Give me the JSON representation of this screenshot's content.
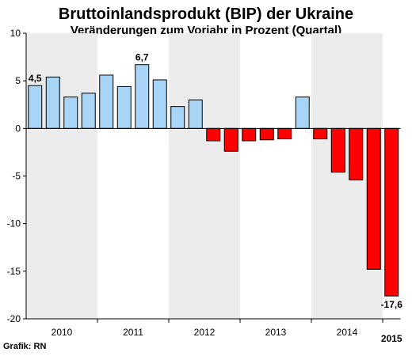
{
  "title": "Bruttoinlandsprodukt (BIP) der Ukraine",
  "subtitle": "Veränderungen zum Vorjahr in Prozent (Quartal)",
  "credit": "Grafik: RN",
  "colors": {
    "positive": "#a8d4f5",
    "negative": "#ff0000",
    "band": "#ececec",
    "outline": "#000000"
  },
  "chart_data": {
    "type": "bar",
    "categories": [
      "2010 Q1",
      "2010 Q2",
      "2010 Q3",
      "2010 Q4",
      "2011 Q1",
      "2011 Q2",
      "2011 Q3",
      "2011 Q4",
      "2012 Q1",
      "2012 Q2",
      "2012 Q3",
      "2012 Q4",
      "2013 Q1",
      "2013 Q2",
      "2013 Q3",
      "2013 Q4",
      "2014 Q1",
      "2014 Q2",
      "2014 Q3",
      "2014 Q4",
      "2015 Q1"
    ],
    "values": [
      4.5,
      5.4,
      3.3,
      3.7,
      5.6,
      4.4,
      6.7,
      5.1,
      2.3,
      3.0,
      -1.3,
      -2.4,
      -1.3,
      -1.2,
      -1.1,
      3.3,
      -1.1,
      -4.6,
      -5.4,
      -14.8,
      -17.6
    ],
    "ylim": [
      -20,
      10
    ],
    "yticks": [
      10,
      5,
      0,
      -5,
      -10,
      -15,
      -20
    ],
    "ytick_labels": [
      "10",
      "5",
      "0",
      "-5",
      "-10",
      "-15",
      "-20"
    ],
    "year_labels": [
      {
        "label": "2010",
        "quarters": 4,
        "bold": false
      },
      {
        "label": "2011",
        "quarters": 4,
        "bold": false
      },
      {
        "label": "2012",
        "quarters": 4,
        "bold": false
      },
      {
        "label": "2013",
        "quarters": 4,
        "bold": false
      },
      {
        "label": "2014",
        "quarters": 4,
        "bold": false
      },
      {
        "label": "2015",
        "quarters": 1,
        "bold": true
      }
    ],
    "shaded_years": [
      "2010",
      "2012",
      "2014"
    ],
    "data_labels": [
      {
        "index": 0,
        "text": "4,5",
        "position": "above"
      },
      {
        "index": 6,
        "text": "6,7",
        "position": "above"
      },
      {
        "index": 20,
        "text": "-17,6",
        "position": "below"
      }
    ],
    "grid": false,
    "legend": "none"
  }
}
